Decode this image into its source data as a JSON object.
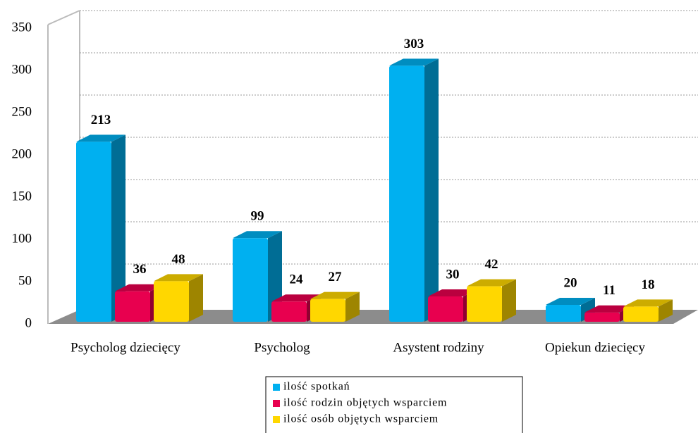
{
  "chart_data": {
    "type": "bar3d",
    "categories": [
      "Psycholog dziecięcy",
      "Psycholog",
      "Asystent rodziny",
      "Opiekun dziecięcy"
    ],
    "series": [
      {
        "name": "ilość spotkań",
        "color": "#00b0f0",
        "values": [
          213,
          99,
          303,
          20
        ]
      },
      {
        "name": "ilość rodzin objętych wsparciem",
        "color": "#e8004f",
        "values": [
          36,
          24,
          30,
          11
        ]
      },
      {
        "name": "ilość osób objętych wsparciem",
        "color": "#ffd700",
        "values": [
          48,
          27,
          42,
          18
        ]
      }
    ],
    "ylim": [
      0,
      350
    ],
    "yticks": [
      0,
      50,
      100,
      150,
      200,
      250,
      300,
      350
    ],
    "grid": true,
    "legend": "bottom"
  }
}
